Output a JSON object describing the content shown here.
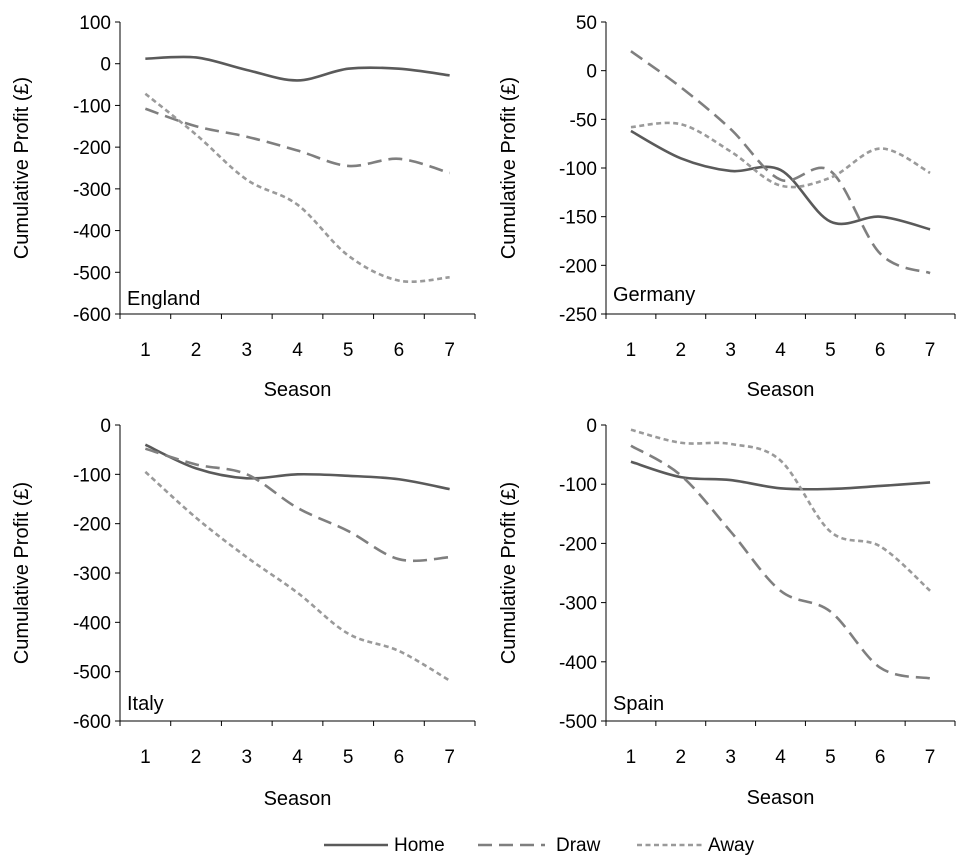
{
  "legend": {
    "items": [
      {
        "label": "Home",
        "style": "solid"
      },
      {
        "label": "Draw",
        "style": "long-dash"
      },
      {
        "label": "Away",
        "style": "short-dash"
      }
    ],
    "placement": "bottom-center"
  },
  "colors": {
    "home": "#5a5a5a",
    "draw": "#7f7f7f",
    "away": "#9a9a9a",
    "axis": "#000000"
  },
  "chart_data": [
    {
      "type": "line",
      "panel_label": "England",
      "xlabel": "Season",
      "ylabel": "Cumulative Profit (£)",
      "x": [
        1,
        2,
        3,
        4,
        5,
        6,
        7
      ],
      "ylim": [
        -600,
        100
      ],
      "yticks": [
        100,
        0,
        -100,
        -200,
        -300,
        -400,
        -500,
        -600
      ],
      "grid": false,
      "series": [
        {
          "name": "Home",
          "values": [
            12,
            15,
            -15,
            -40,
            -12,
            -12,
            -28
          ]
        },
        {
          "name": "Draw",
          "values": [
            -108,
            -150,
            -175,
            -208,
            -245,
            -228,
            -262
          ]
        },
        {
          "name": "Away",
          "values": [
            -72,
            -170,
            -278,
            -338,
            -460,
            -520,
            -512
          ]
        }
      ]
    },
    {
      "type": "line",
      "panel_label": "Germany",
      "xlabel": "Season",
      "ylabel": "Cumulative Profit (£)",
      "x": [
        1,
        2,
        3,
        4,
        5,
        6,
        7
      ],
      "ylim": [
        -250,
        50
      ],
      "yticks": [
        50,
        0,
        -50,
        -100,
        -150,
        -200,
        -250
      ],
      "grid": false,
      "series": [
        {
          "name": "Home",
          "values": [
            -62,
            -90,
            -103,
            -102,
            -155,
            -150,
            -163
          ]
        },
        {
          "name": "Draw",
          "values": [
            20,
            -17,
            -60,
            -112,
            -103,
            -188,
            -208
          ]
        },
        {
          "name": "Away",
          "values": [
            -58,
            -55,
            -83,
            -118,
            -110,
            -80,
            -105
          ]
        }
      ]
    },
    {
      "type": "line",
      "panel_label": "Italy",
      "xlabel": "Season",
      "ylabel": "Cumulative Profit (£)",
      "x": [
        1,
        2,
        3,
        4,
        5,
        6,
        7
      ],
      "ylim": [
        -600,
        0
      ],
      "yticks": [
        0,
        -100,
        -200,
        -300,
        -400,
        -500,
        -600
      ],
      "grid": false,
      "series": [
        {
          "name": "Home",
          "values": [
            -40,
            -88,
            -108,
            -100,
            -103,
            -110,
            -130
          ]
        },
        {
          "name": "Draw",
          "values": [
            -48,
            -80,
            -100,
            -168,
            -215,
            -272,
            -268
          ]
        },
        {
          "name": "Away",
          "values": [
            -95,
            -188,
            -268,
            -340,
            -423,
            -458,
            -518
          ]
        }
      ]
    },
    {
      "type": "line",
      "panel_label": "Spain",
      "xlabel": "Season",
      "ylabel": "Cumulative Profit (£)",
      "x": [
        1,
        2,
        3,
        4,
        5,
        6,
        7
      ],
      "ylim": [
        -500,
        0
      ],
      "yticks": [
        0,
        -100,
        -200,
        -300,
        -400,
        -500
      ],
      "grid": false,
      "series": [
        {
          "name": "Home",
          "values": [
            -62,
            -88,
            -93,
            -107,
            -108,
            -103,
            -97
          ]
        },
        {
          "name": "Draw",
          "values": [
            -35,
            -85,
            -180,
            -280,
            -315,
            -410,
            -428
          ]
        },
        {
          "name": "Away",
          "values": [
            -8,
            -30,
            -32,
            -60,
            -180,
            -205,
            -280
          ]
        }
      ]
    }
  ]
}
